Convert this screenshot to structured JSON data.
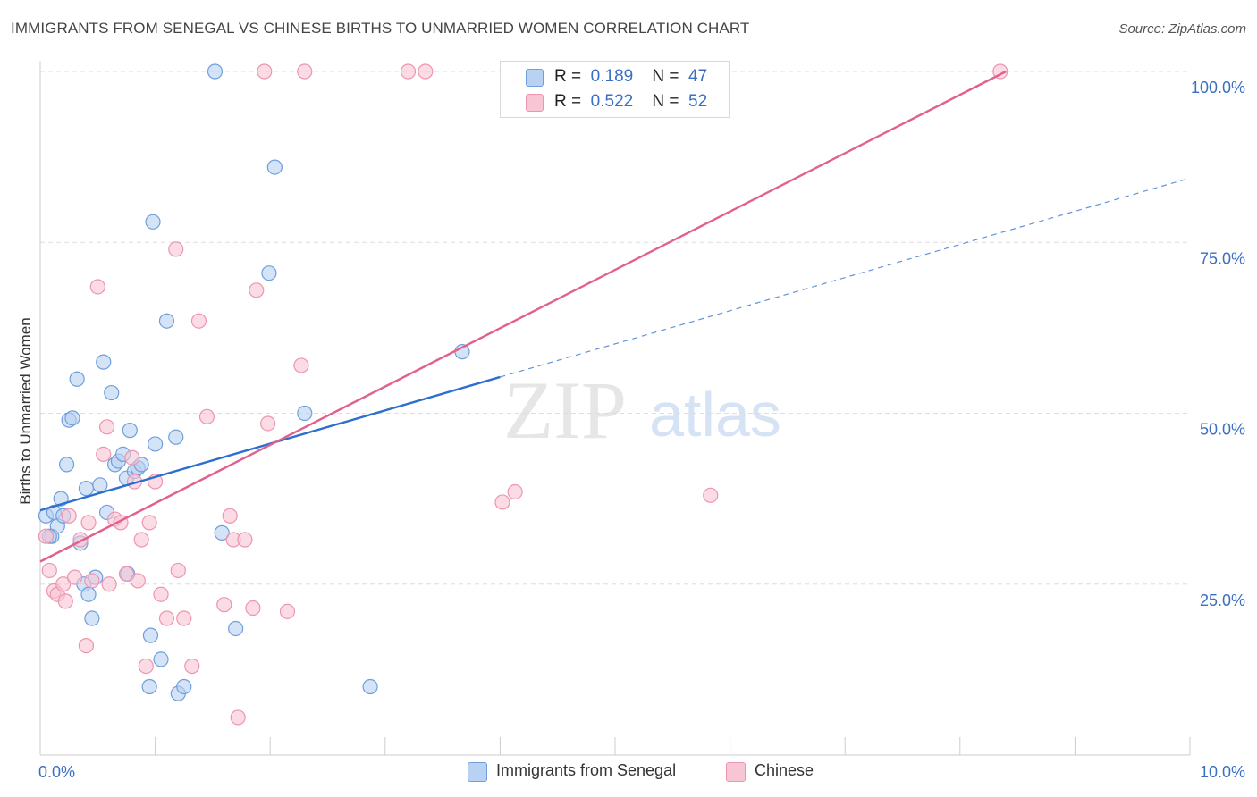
{
  "title": "IMMIGRANTS FROM SENEGAL VS CHINESE BIRTHS TO UNMARRIED WOMEN CORRELATION CHART",
  "source": "Source: ZipAtlas.com",
  "watermark": {
    "zip": "ZIP",
    "atlas": "atlas"
  },
  "legend_top": {
    "rows": [
      {
        "r_label": "R =",
        "r_value": "0.189",
        "n_label": "N =",
        "n_value": "47"
      },
      {
        "r_label": "R =",
        "r_value": "0.522",
        "n_label": "N =",
        "n_value": "52"
      }
    ]
  },
  "legend_bottom": [
    {
      "label": "Immigrants from Senegal"
    },
    {
      "label": "Chinese"
    }
  ],
  "colors": {
    "senegal_fill": "#b9d1f2",
    "senegal_stroke": "#6f9fdc",
    "senegal_line": "#2c6fcf",
    "chinese_fill": "#f8c5d4",
    "chinese_stroke": "#ec95b1",
    "chinese_line": "#e2608d",
    "tick_label": "#3a6fc4",
    "grid": "#dddddd"
  },
  "chart_data": {
    "type": "scatter",
    "title": "IMMIGRANTS FROM SENEGAL VS CHINESE BIRTHS TO UNMARRIED WOMEN CORRELATION CHART",
    "xlabel": "",
    "ylabel": "Births to Unmarried Women",
    "xlim": [
      0,
      10
    ],
    "ylim": [
      0,
      100
    ],
    "x_tick_labels": [
      "0.0%",
      "10.0%"
    ],
    "y_tick_labels": [
      "100.0%",
      "75.0%",
      "50.0%",
      "25.0%"
    ],
    "y_ticks": [
      100,
      75,
      50,
      25
    ],
    "grid": true,
    "series": [
      {
        "name": "Immigrants from Senegal",
        "r": 0.189,
        "n": 47,
        "trend": {
          "solid": [
            [
              0.0,
              35.8
            ],
            [
              4.0,
              55.3
            ]
          ],
          "dashed": [
            [
              4.0,
              55.3
            ],
            [
              10.0,
              84.4
            ]
          ]
        },
        "points": [
          [
            0.05,
            35.0
          ],
          [
            0.1,
            32.0
          ],
          [
            0.12,
            35.5
          ],
          [
            0.15,
            33.5
          ],
          [
            0.18,
            37.5
          ],
          [
            0.2,
            35.0
          ],
          [
            0.23,
            42.5
          ],
          [
            0.25,
            49.0
          ],
          [
            0.28,
            49.3
          ],
          [
            0.32,
            55.0
          ],
          [
            0.35,
            31.0
          ],
          [
            0.38,
            25.0
          ],
          [
            0.4,
            39.0
          ],
          [
            0.42,
            23.5
          ],
          [
            0.45,
            20.0
          ],
          [
            0.48,
            26.0
          ],
          [
            0.52,
            39.5
          ],
          [
            0.55,
            57.5
          ],
          [
            0.58,
            35.5
          ],
          [
            0.62,
            53.0
          ],
          [
            0.65,
            42.5
          ],
          [
            0.68,
            43.0
          ],
          [
            0.72,
            44.0
          ],
          [
            0.75,
            40.5
          ],
          [
            0.76,
            26.5
          ],
          [
            0.78,
            47.5
          ],
          [
            0.82,
            41.5
          ],
          [
            0.85,
            42.0
          ],
          [
            0.88,
            42.5
          ],
          [
            0.95,
            10.0
          ],
          [
            0.96,
            17.5
          ],
          [
            0.98,
            78.0
          ],
          [
            1.0,
            45.5
          ],
          [
            1.05,
            14.0
          ],
          [
            1.1,
            63.5
          ],
          [
            1.18,
            46.5
          ],
          [
            1.2,
            9.0
          ],
          [
            1.25,
            10.0
          ],
          [
            1.52,
            100.0
          ],
          [
            1.58,
            32.5
          ],
          [
            1.7,
            18.5
          ],
          [
            1.99,
            70.5
          ],
          [
            2.04,
            86.0
          ],
          [
            2.3,
            50.0
          ],
          [
            2.87,
            10.0
          ],
          [
            3.67,
            59.0
          ],
          [
            0.08,
            32.0
          ]
        ]
      },
      {
        "name": "Chinese",
        "r": 0.522,
        "n": 52,
        "trend": {
          "solid": [
            [
              0.0,
              28.3
            ],
            [
              8.4,
              100.0
            ]
          ]
        },
        "points": [
          [
            0.05,
            32.0
          ],
          [
            0.08,
            27.0
          ],
          [
            0.12,
            24.0
          ],
          [
            0.15,
            23.5
          ],
          [
            0.2,
            25.0
          ],
          [
            0.22,
            22.5
          ],
          [
            0.25,
            35.0
          ],
          [
            0.3,
            26.0
          ],
          [
            0.35,
            31.5
          ],
          [
            0.4,
            16.0
          ],
          [
            0.42,
            34.0
          ],
          [
            0.45,
            25.5
          ],
          [
            0.5,
            68.5
          ],
          [
            0.55,
            44.0
          ],
          [
            0.58,
            48.0
          ],
          [
            0.6,
            25.0
          ],
          [
            0.65,
            34.5
          ],
          [
            0.7,
            34.0
          ],
          [
            0.75,
            26.5
          ],
          [
            0.8,
            43.5
          ],
          [
            0.82,
            40.0
          ],
          [
            0.85,
            25.5
          ],
          [
            0.88,
            31.5
          ],
          [
            0.92,
            13.0
          ],
          [
            0.95,
            34.0
          ],
          [
            1.0,
            40.0
          ],
          [
            1.05,
            23.5
          ],
          [
            1.1,
            20.0
          ],
          [
            1.18,
            74.0
          ],
          [
            1.2,
            27.0
          ],
          [
            1.25,
            20.0
          ],
          [
            1.32,
            13.0
          ],
          [
            1.38,
            63.5
          ],
          [
            1.45,
            49.5
          ],
          [
            1.6,
            22.0
          ],
          [
            1.65,
            35.0
          ],
          [
            1.68,
            31.5
          ],
          [
            1.72,
            5.5
          ],
          [
            1.78,
            31.5
          ],
          [
            1.85,
            21.5
          ],
          [
            1.88,
            68.0
          ],
          [
            1.95,
            100.0
          ],
          [
            1.98,
            48.5
          ],
          [
            2.15,
            21.0
          ],
          [
            2.27,
            57.0
          ],
          [
            2.3,
            100.0
          ],
          [
            3.2,
            100.0
          ],
          [
            3.35,
            100.0
          ],
          [
            4.02,
            37.0
          ],
          [
            4.13,
            38.5
          ],
          [
            5.83,
            38.0
          ],
          [
            8.35,
            100.0
          ]
        ]
      }
    ]
  }
}
